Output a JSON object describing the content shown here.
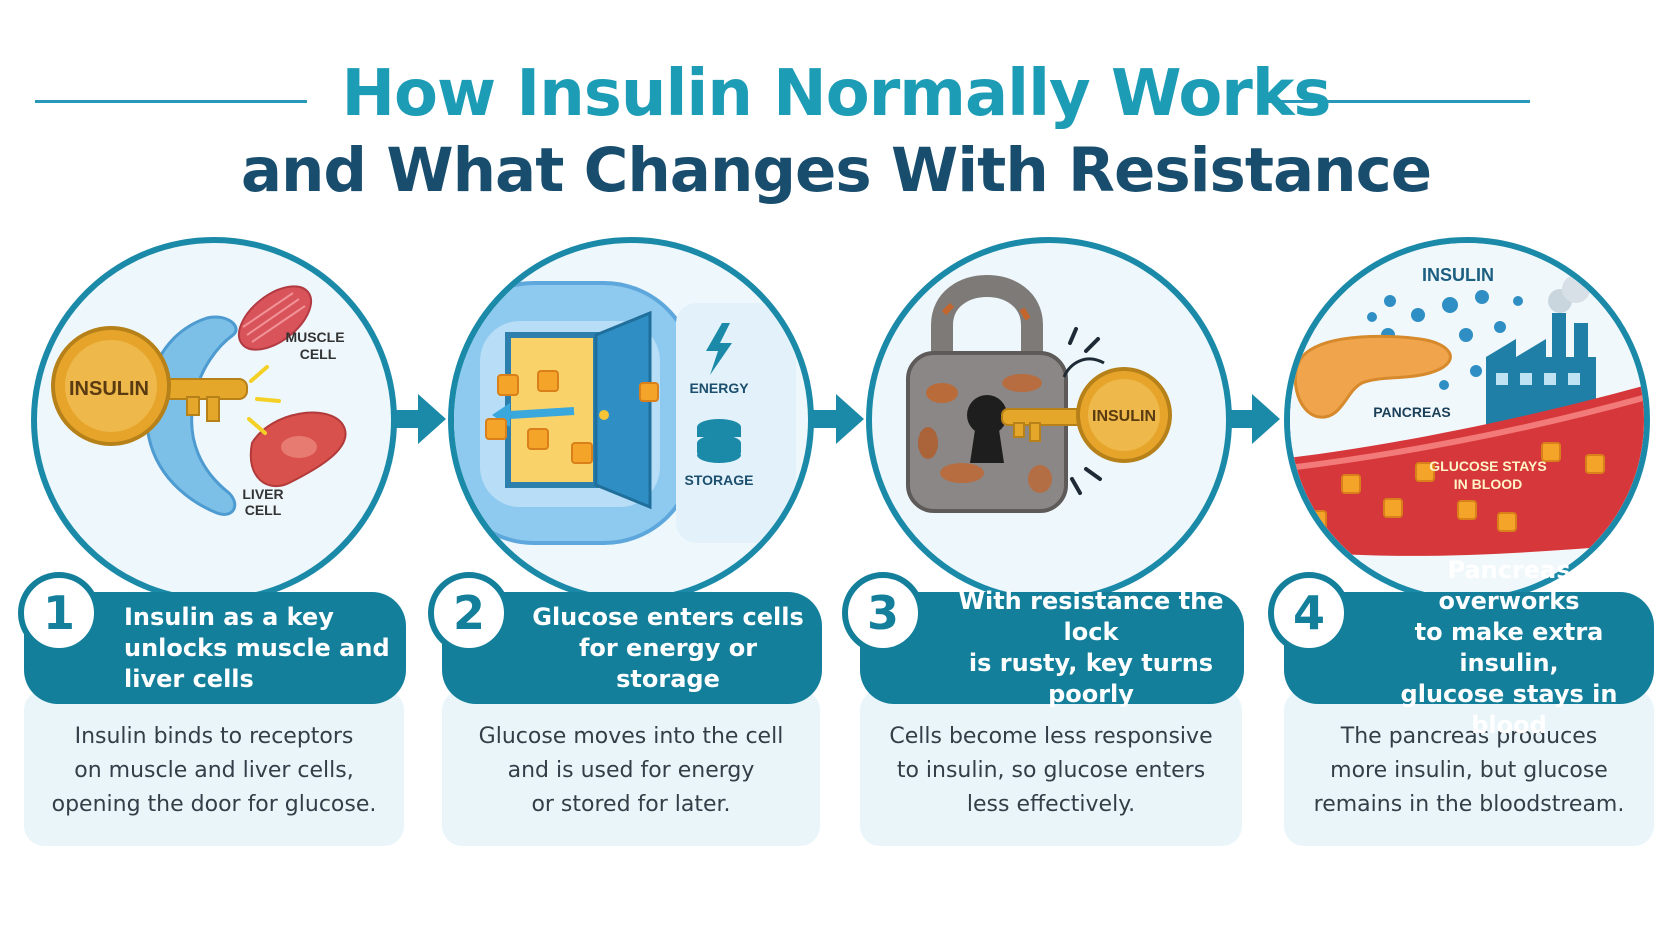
{
  "title": {
    "line1": "How Insulin Normally Works",
    "line2": "and What Changes With Resistance"
  },
  "panels": [
    {
      "number": "1",
      "heading": [
        "Insulin as a key",
        "unlocks muscle and",
        "liver cells"
      ],
      "body": [
        "Insulin binds to receptors",
        "on muscle and liver cells,",
        "opening the door for glucose."
      ],
      "labels": {
        "key": "INSULIN",
        "muscle": [
          "MUSCLE",
          "CELL"
        ],
        "liver": [
          "LIVER",
          "CELL"
        ]
      }
    },
    {
      "number": "2",
      "heading": [
        "Glucose enters cells",
        "for energy or storage"
      ],
      "body": [
        "Glucose moves into the cell",
        "and is used for energy",
        "or stored for later."
      ],
      "labels": {
        "energy": "ENERGY",
        "storage": "STORAGE"
      }
    },
    {
      "number": "3",
      "heading": [
        "With resistance the lock",
        "is rusty, key turns poorly"
      ],
      "body": [
        "Cells become less responsive",
        "to insulin, so glucose enters",
        "less effectively."
      ],
      "labels": {
        "key": "INSULIN"
      }
    },
    {
      "number": "4",
      "heading": [
        "Pancreas overworks",
        "to make extra insulin,",
        "glucose stays in blood"
      ],
      "body": [
        "The pancreas produces",
        "more insulin, but glucose",
        "remains in the bloodstream."
      ],
      "labels": {
        "insulin": "INSULIN",
        "pancreas": "PANCREAS",
        "blood": [
          "GLUCOSE STAYS",
          "IN BLOOD"
        ]
      }
    }
  ],
  "icons": {
    "panel1": [
      "key-icon",
      "muscle-cell-icon",
      "liver-cell-icon",
      "receptor-icon"
    ],
    "panel2": [
      "cell-door-icon",
      "glucose-cube-icon",
      "energy-bolt-icon",
      "storage-stack-icon"
    ],
    "panel3": [
      "rusty-padlock-icon",
      "key-icon"
    ],
    "panel4": [
      "insulin-drop-icon",
      "pancreas-icon",
      "factory-icon",
      "blood-vessel-icon",
      "glucose-cube-icon"
    ],
    "connectors": "arrow-right-icon"
  },
  "colors": {
    "teal": "#137f9b",
    "title_light": "#1d9cb6",
    "title_dark": "#194d6e",
    "card_bg": "#eaf5fa",
    "glucose": "#f4a428",
    "blood": "#d6373a"
  }
}
